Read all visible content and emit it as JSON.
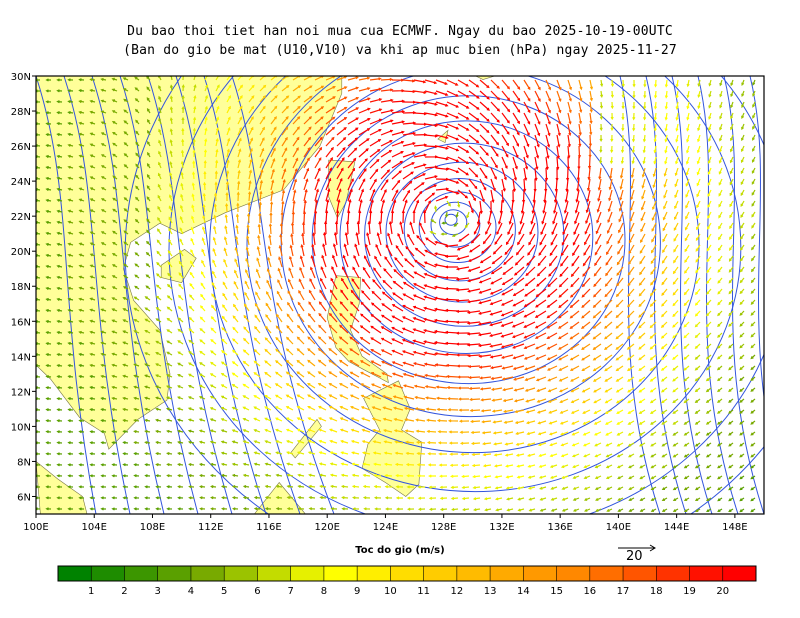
{
  "title_line1": "Du bao thoi tiet han noi mua cua ECMWF. Ngay du bao 2025-10-19-00UTC",
  "title_line2": "(Ban do gio be mat (U10,V10) va khi ap muc bien (hPa) ngay 2025-11-27",
  "map": {
    "lon_range": [
      100,
      150
    ],
    "lat_range": [
      5,
      30
    ],
    "lon_ticks": [
      "100E",
      "104E",
      "108E",
      "112E",
      "116E",
      "120E",
      "124E",
      "128E",
      "132E",
      "136E",
      "140E",
      "144E",
      "148E"
    ],
    "lat_ticks": [
      "6N",
      "8N",
      "10N",
      "12N",
      "14N",
      "16N",
      "18N",
      "20N",
      "22N",
      "24N",
      "26N",
      "28N",
      "30N"
    ],
    "cyclone_center": {
      "lon": 128.5,
      "lat": 21.8
    },
    "isobar_color": "#3355dd",
    "land_color": "#ffff99"
  },
  "legend": {
    "title": "Toc do gio (m/s)",
    "labels": [
      "1",
      "2",
      "3",
      "4",
      "5",
      "6",
      "7",
      "8",
      "9",
      "10",
      "11",
      "12",
      "13",
      "14",
      "15",
      "16",
      "17",
      "18",
      "19",
      "20"
    ],
    "colors": [
      "#008200",
      "#1e8c00",
      "#3c9600",
      "#5aa000",
      "#78aa00",
      "#9bc300",
      "#c3dc00",
      "#e6f000",
      "#ffff00",
      "#ffee00",
      "#ffdd00",
      "#ffcc00",
      "#ffbb00",
      "#ffaa00",
      "#ff9900",
      "#ff8800",
      "#ff6e00",
      "#ff5500",
      "#ff3300",
      "#ff1100",
      "#ff0000"
    ],
    "reference_vector": "20"
  }
}
